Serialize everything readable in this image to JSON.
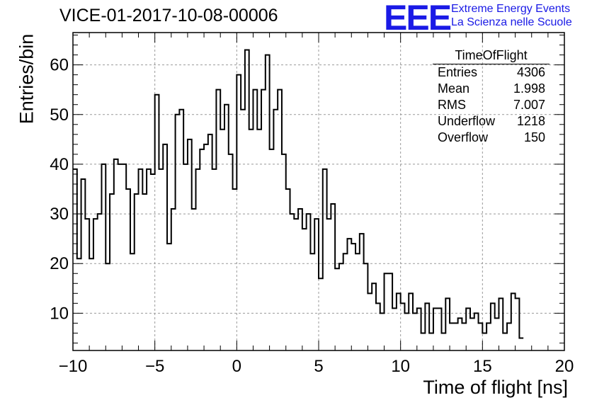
{
  "title": "VICE-01-2017-10-08-00006",
  "logo": {
    "mark": "EEE",
    "line1": "Extreme Energy Events",
    "line2": "La Scienza nelle Scuole"
  },
  "stats": {
    "name": "TimeOfFlight",
    "rows": [
      {
        "label": "Entries",
        "value": "4306"
      },
      {
        "label": "Mean",
        "value": "1.998"
      },
      {
        "label": "RMS",
        "value": "7.007"
      },
      {
        "label": "Underflow",
        "value": "1218"
      },
      {
        "label": "Overflow",
        "value": "150"
      }
    ]
  },
  "chart_data": {
    "type": "histogram",
    "xlabel": "Time of flight [ns]",
    "ylabel": "Entries/bin",
    "xlim": [
      -10,
      20
    ],
    "ylim": [
      2.5,
      66.5
    ],
    "bin_width": 0.25,
    "x_ticks": [
      -10,
      -5,
      0,
      5,
      10,
      15,
      20
    ],
    "x_tick_labels": [
      "−10",
      "−5",
      "0",
      "5",
      "10",
      "15",
      "20"
    ],
    "y_ticks": [
      10,
      20,
      30,
      40,
      50,
      60
    ],
    "y_tick_labels": [
      "10",
      "20",
      "30",
      "40",
      "50",
      "60"
    ],
    "grid": true,
    "values": [
      39,
      21,
      37,
      29,
      21,
      29,
      30,
      40,
      20,
      34,
      41,
      40,
      40,
      35,
      22,
      34,
      39,
      34,
      39,
      38,
      54,
      39,
      44,
      24,
      31,
      50,
      51,
      40,
      45,
      31,
      39,
      43,
      44,
      46,
      39,
      55,
      47,
      52,
      42,
      35,
      58,
      51,
      63,
      47,
      55,
      47,
      55,
      62,
      43,
      51,
      55,
      42,
      35,
      30,
      29,
      31,
      27,
      30,
      22,
      29,
      17,
      39,
      29,
      32,
      19,
      20,
      22,
      25,
      24,
      22,
      26,
      20,
      14,
      16,
      12,
      10,
      18,
      18,
      11,
      14,
      12,
      10,
      14,
      10,
      11,
      6,
      12,
      6,
      11,
      11,
      6,
      13,
      8,
      8,
      9,
      8,
      11,
      9,
      10,
      8,
      6,
      8,
      12,
      9,
      13,
      6,
      8,
      14,
      13,
      5
    ]
  }
}
